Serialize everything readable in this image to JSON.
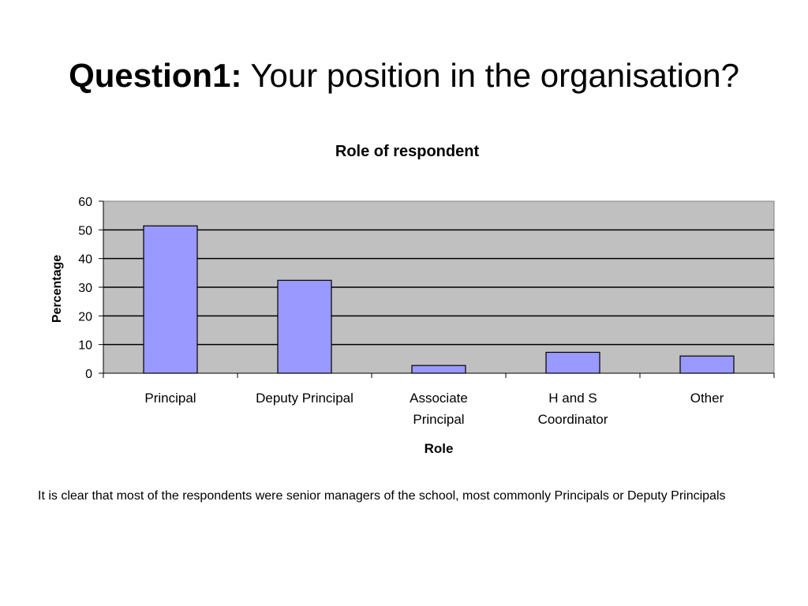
{
  "slide": {
    "title_bold": "Question1:",
    "title_rest": "Your position in the organisation?",
    "caption": "It is clear that most of the respondents were senior managers of the school, most commonly Principals or Deputy Principals"
  },
  "chart_data": {
    "type": "bar",
    "title": "Role of respondent",
    "xlabel": "Role",
    "ylabel": "Percentage",
    "categories": [
      [
        "Principal"
      ],
      [
        "Deputy Principal"
      ],
      [
        "Associate",
        "Principal"
      ],
      [
        "H and S",
        "Coordinator"
      ],
      [
        "Other"
      ]
    ],
    "values": [
      51.4,
      32.4,
      2.7,
      7.3,
      6.0
    ],
    "ylim": [
      0,
      60
    ],
    "yticks": [
      0,
      10,
      20,
      30,
      40,
      50,
      60
    ],
    "grid": true,
    "legend": "none",
    "colors": {
      "bar_fill": "#9999ff",
      "bar_stroke": "#000000",
      "plot_background": "#c0c0c0",
      "gridline": "#000000",
      "frame": "#808080"
    }
  }
}
